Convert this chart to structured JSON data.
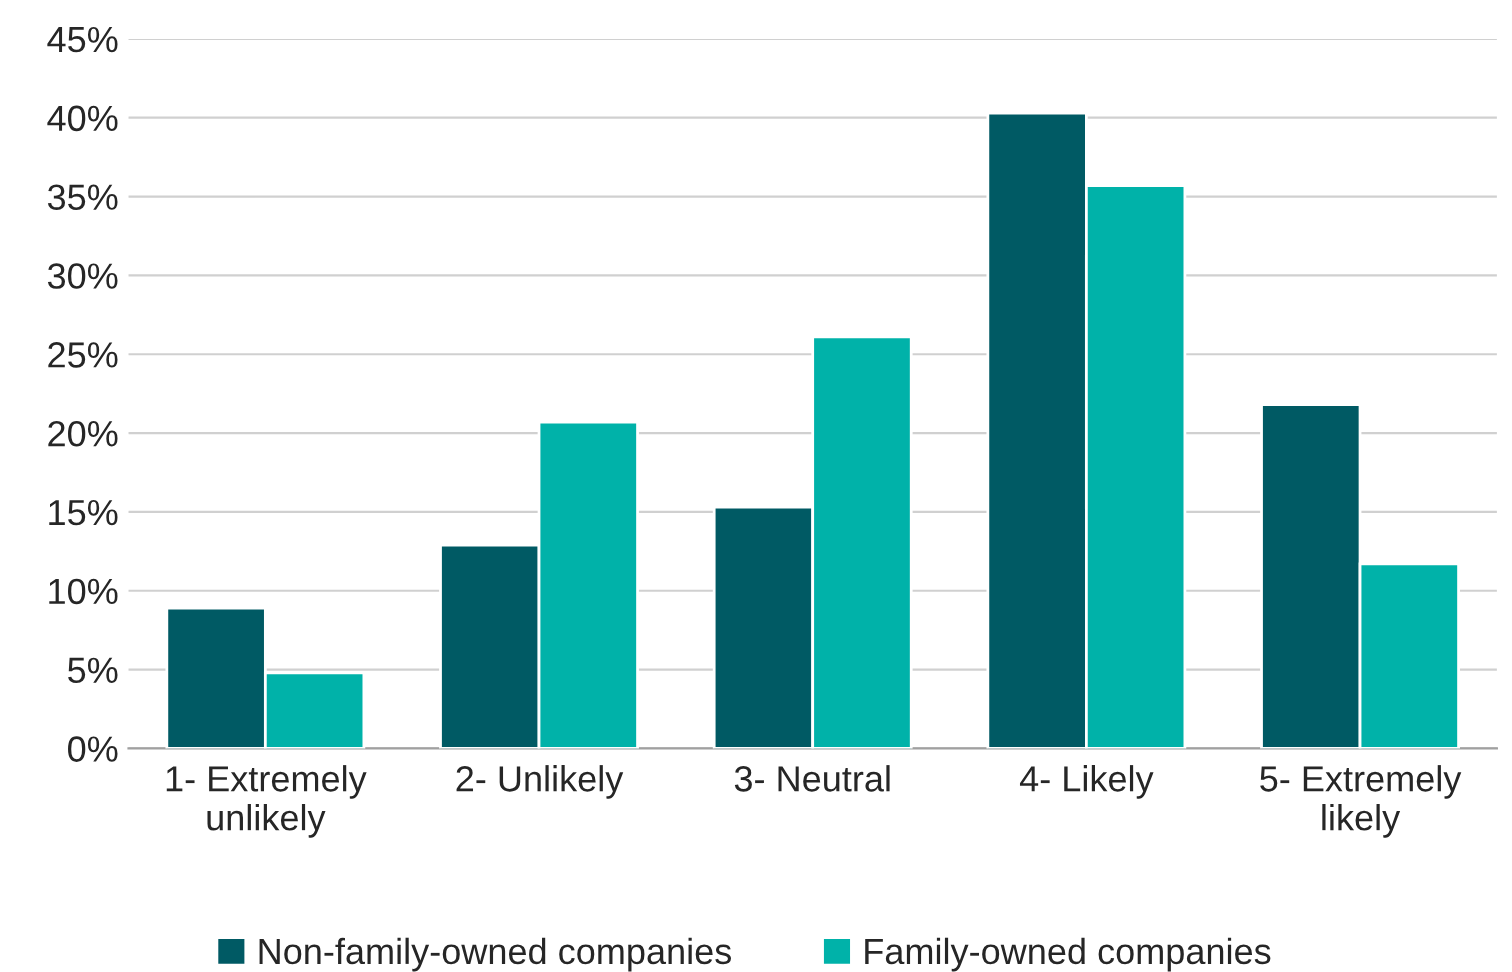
{
  "chart_data": {
    "type": "bar",
    "categories": [
      "1- Extremely\nunlikely",
      "2- Unlikely",
      "3- Neutral",
      "4- Likely",
      "5- Extremely\nlikely"
    ],
    "series": [
      {
        "name": "Non-family-owned companies",
        "color": "#005a64",
        "values": [
          8.9,
          12.9,
          15.3,
          40.3,
          21.8
        ]
      },
      {
        "name": "Family-owned companies",
        "color": "#00b2a9",
        "values": [
          4.8,
          20.7,
          26.1,
          35.7,
          11.7
        ]
      }
    ],
    "ylim": [
      0,
      45
    ],
    "yticks": [
      {
        "value": 0,
        "label": "0%"
      },
      {
        "value": 5,
        "label": "5%"
      },
      {
        "value": 10,
        "label": "10%"
      },
      {
        "value": 15,
        "label": "15%"
      },
      {
        "value": 20,
        "label": "20%"
      },
      {
        "value": 25,
        "label": "25%"
      },
      {
        "value": 30,
        "label": "30%"
      },
      {
        "value": 35,
        "label": "35%"
      },
      {
        "value": 40,
        "label": "40%"
      },
      {
        "value": 45,
        "label": "45%"
      }
    ],
    "grid": "y",
    "legend": "bottom"
  }
}
